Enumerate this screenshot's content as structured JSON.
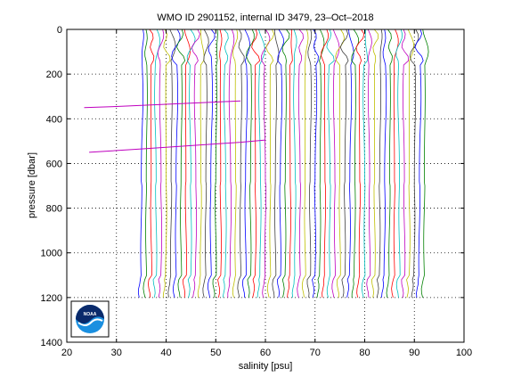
{
  "chart_data": {
    "type": "line",
    "title": "WMO ID 2901152, internal ID 3479, 23–Oct–2018",
    "xlabel": "salinity [psu]",
    "ylabel": "pressure [dbar]",
    "xlim": [
      20,
      100
    ],
    "ylim": [
      0,
      1400
    ],
    "y_reversed": true,
    "grid": true,
    "grid_style": "dotted",
    "xticks": [
      20,
      30,
      40,
      50,
      60,
      70,
      80,
      90,
      100
    ],
    "yticks": [
      0,
      200,
      400,
      600,
      800,
      1000,
      1200,
      1400
    ],
    "profiles": {
      "count": 58,
      "offset_step_psu": 1,
      "first_surface_salinity": 35.0,
      "deep_salinity_first": 34.6,
      "max_pressure_dbar": 1200,
      "pattern": "stacked salinity profiles, each offset by 1 psu"
    },
    "series_colors": [
      "#0000ff",
      "#008000",
      "#ff0000",
      "#00bfbf",
      "#bf00bf",
      "#bfbf00",
      "#404040"
    ],
    "outliers": [
      {
        "points": [
          [
            23.5,
            350
          ],
          [
            30,
            345
          ],
          [
            40,
            335
          ],
          [
            50,
            325
          ],
          [
            55,
            320
          ]
        ],
        "color": "#bf00bf"
      },
      {
        "points": [
          [
            24.5,
            550
          ],
          [
            35,
            535
          ],
          [
            45,
            520
          ],
          [
            55,
            505
          ],
          [
            60,
            495
          ]
        ],
        "color": "#bf00bf"
      }
    ],
    "logo": {
      "text": "NOAA",
      "colors": [
        "#0a2a6b",
        "#1a8fe0",
        "#ffffff"
      ]
    }
  }
}
